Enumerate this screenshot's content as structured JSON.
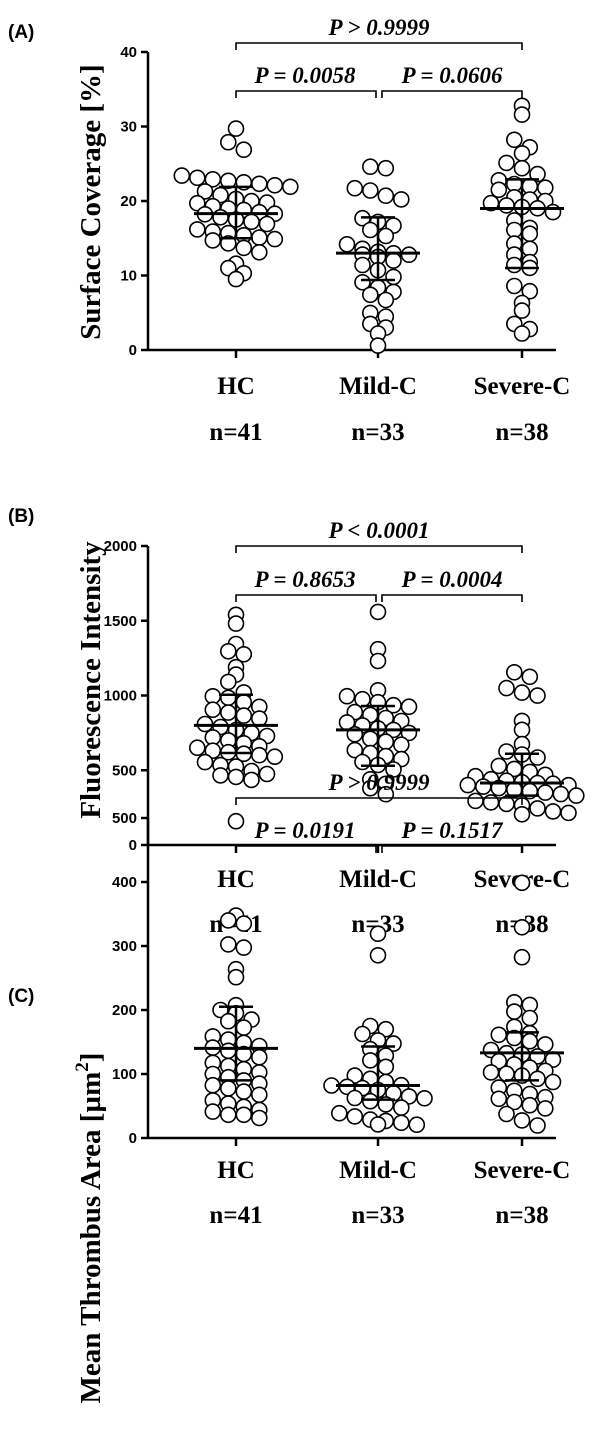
{
  "chart_data": [
    {
      "type": "scatter",
      "panel_label": "(A)",
      "ylabel": "Surface Coverage [%]",
      "ylabel_sup": "",
      "ylabel_tail": "",
      "ylim": [
        0,
        40
      ],
      "yticks": [
        0,
        10,
        20,
        30,
        40
      ],
      "categories": [
        "HC",
        "Mild-C",
        "Severe-C"
      ],
      "n_labels": [
        "n=41",
        "n=33",
        "n=38"
      ],
      "grid": false,
      "comparisons": [
        {
          "groups": [
            0,
            2
          ],
          "label": "P > 0.9999"
        },
        {
          "groups": [
            0,
            1
          ],
          "label": "P = 0.0058"
        },
        {
          "groups": [
            1,
            2
          ],
          "label": "P = 0.0606"
        }
      ],
      "summary": [
        {
          "median": 18.3,
          "q1": 15.0,
          "q3": 21.9
        },
        {
          "median": 13.0,
          "q1": 9.4,
          "q3": 17.8
        },
        {
          "median": 19.0,
          "q1": 11.0,
          "q3": 22.9
        }
      ],
      "series": [
        {
          "values": [
            29.5,
            28.0,
            27.0,
            23.3,
            23.0,
            22.8,
            22.6,
            22.4,
            22.2,
            22.0,
            21.8,
            21.5,
            21.0,
            20.5,
            20.2,
            20.0,
            19.7,
            19.3,
            19.0,
            18.8,
            18.5,
            18.3,
            18.0,
            17.6,
            17.3,
            17.0,
            16.7,
            16.3,
            16.0,
            15.8,
            15.5,
            15.2,
            15.0,
            14.6,
            14.2,
            13.6,
            13.0,
            11.8,
            11.0,
            10.3,
            9.3
          ]
        },
        {
          "values": [
            24.6,
            24.4,
            21.5,
            21.2,
            20.5,
            20.0,
            17.8,
            17.3,
            16.8,
            16.0,
            15.2,
            14.4,
            13.8,
            13.4,
            13.2,
            13.0,
            12.8,
            12.5,
            12.0,
            11.2,
            10.5,
            9.6,
            9.2,
            8.5,
            7.9,
            7.3,
            6.6,
            5.2,
            4.7,
            3.5,
            3.0,
            2.0,
            0.7
          ]
        },
        {
          "values": [
            33.0,
            31.6,
            28.0,
            27.0,
            26.5,
            25.0,
            24.3,
            23.5,
            23.0,
            22.5,
            22.2,
            22.0,
            21.5,
            20.5,
            20.2,
            20.0,
            19.5,
            19.2,
            19.0,
            18.8,
            18.3,
            17.5,
            16.5,
            16.0,
            15.5,
            14.5,
            13.8,
            12.8,
            11.8,
            11.2,
            10.8,
            8.7,
            8.0,
            6.2,
            5.5,
            3.5,
            2.8,
            2.0
          ]
        }
      ]
    },
    {
      "type": "scatter",
      "panel_label": "(B)",
      "ylabel": "Fluorescence Intensity",
      "ylabel_sup": "",
      "ylabel_tail": "",
      "ylim": [
        0,
        2000
      ],
      "yticks": [
        0,
        500,
        1000,
        1500,
        2000
      ],
      "categories": [
        "HC",
        "Mild-C",
        "Severe-C"
      ],
      "n_labels": [
        "n=41",
        "n=33",
        "n=38"
      ],
      "grid": false,
      "comparisons": [
        {
          "groups": [
            0,
            2
          ],
          "label": "P < 0.0001"
        },
        {
          "groups": [
            0,
            1
          ],
          "label": "P = 0.8653"
        },
        {
          "groups": [
            1,
            2
          ],
          "label": "P = 0.0004"
        }
      ],
      "summary": [
        {
          "median": 800,
          "q1": 615,
          "q3": 1005
        },
        {
          "median": 770,
          "q1": 530,
          "q3": 930
        },
        {
          "median": 415,
          "q1": 330,
          "q3": 610
        }
      ],
      "series": [
        {
          "values": [
            1540,
            1470,
            1350,
            1290,
            1270,
            1200,
            1140,
            1080,
            1010,
            1000,
            990,
            960,
            930,
            900,
            880,
            860,
            840,
            820,
            800,
            780,
            760,
            740,
            720,
            700,
            680,
            660,
            640,
            620,
            610,
            600,
            590,
            580,
            560,
            540,
            530,
            500,
            480,
            460,
            450,
            430,
            170
          ]
        },
        {
          "values": [
            1570,
            1310,
            1220,
            1040,
            990,
            970,
            950,
            930,
            920,
            900,
            880,
            860,
            840,
            820,
            800,
            780,
            770,
            750,
            730,
            700,
            680,
            660,
            640,
            620,
            600,
            580,
            550,
            530,
            500,
            450,
            420,
            380,
            340
          ]
        },
        {
          "values": [
            1150,
            1120,
            1060,
            1030,
            1010,
            830,
            760,
            680,
            620,
            600,
            580,
            540,
            520,
            500,
            480,
            460,
            440,
            430,
            420,
            415,
            410,
            400,
            390,
            380,
            370,
            360,
            350,
            340,
            330,
            320,
            300,
            290,
            280,
            270,
            250,
            230,
            220,
            200
          ]
        }
      ]
    },
    {
      "type": "scatter",
      "panel_label": "(C)",
      "ylabel": "Mean Thrombus Area [µm",
      "ylabel_sup": "2",
      "ylabel_tail": "]",
      "ylim": [
        0,
        500
      ],
      "yticks": [
        0,
        100,
        200,
        300,
        400,
        500
      ],
      "categories": [
        "HC",
        "Mild-C",
        "Severe-C"
      ],
      "n_labels": [
        "n=41",
        "n=33",
        "n=38"
      ],
      "grid": false,
      "comparisons": [
        {
          "groups": [
            0,
            2
          ],
          "label": "P > 0.9999"
        },
        {
          "groups": [
            0,
            1
          ],
          "label": "P = 0.0191"
        },
        {
          "groups": [
            1,
            2
          ],
          "label": "P = 0.1517"
        }
      ],
      "summary": [
        {
          "median": 140,
          "q1": 90,
          "q3": 205
        },
        {
          "median": 82,
          "q1": 60,
          "q3": 143
        },
        {
          "median": 133,
          "q1": 90,
          "q3": 165
        }
      ],
      "series": [
        {
          "values": [
            350,
            340,
            335,
            300,
            295,
            265,
            250,
            210,
            200,
            195,
            185,
            180,
            170,
            160,
            155,
            150,
            145,
            140,
            135,
            130,
            125,
            120,
            115,
            110,
            105,
            100,
            95,
            90,
            85,
            80,
            75,
            70,
            65,
            60,
            55,
            50,
            45,
            40,
            35,
            35,
            30
          ]
        },
        {
          "values": [
            318,
            288,
            175,
            170,
            160,
            150,
            145,
            140,
            130,
            120,
            110,
            100,
            95,
            90,
            85,
            82,
            80,
            78,
            75,
            70,
            65,
            62,
            60,
            55,
            50,
            45,
            40,
            35,
            30,
            28,
            25,
            22,
            20
          ]
        },
        {
          "values": [
            400,
            328,
            285,
            212,
            208,
            195,
            185,
            175,
            165,
            160,
            155,
            150,
            145,
            140,
            135,
            133,
            130,
            125,
            120,
            115,
            110,
            105,
            100,
            98,
            95,
            90,
            85,
            80,
            75,
            70,
            65,
            60,
            55,
            50,
            45,
            40,
            30,
            22
          ]
        }
      ]
    }
  ]
}
